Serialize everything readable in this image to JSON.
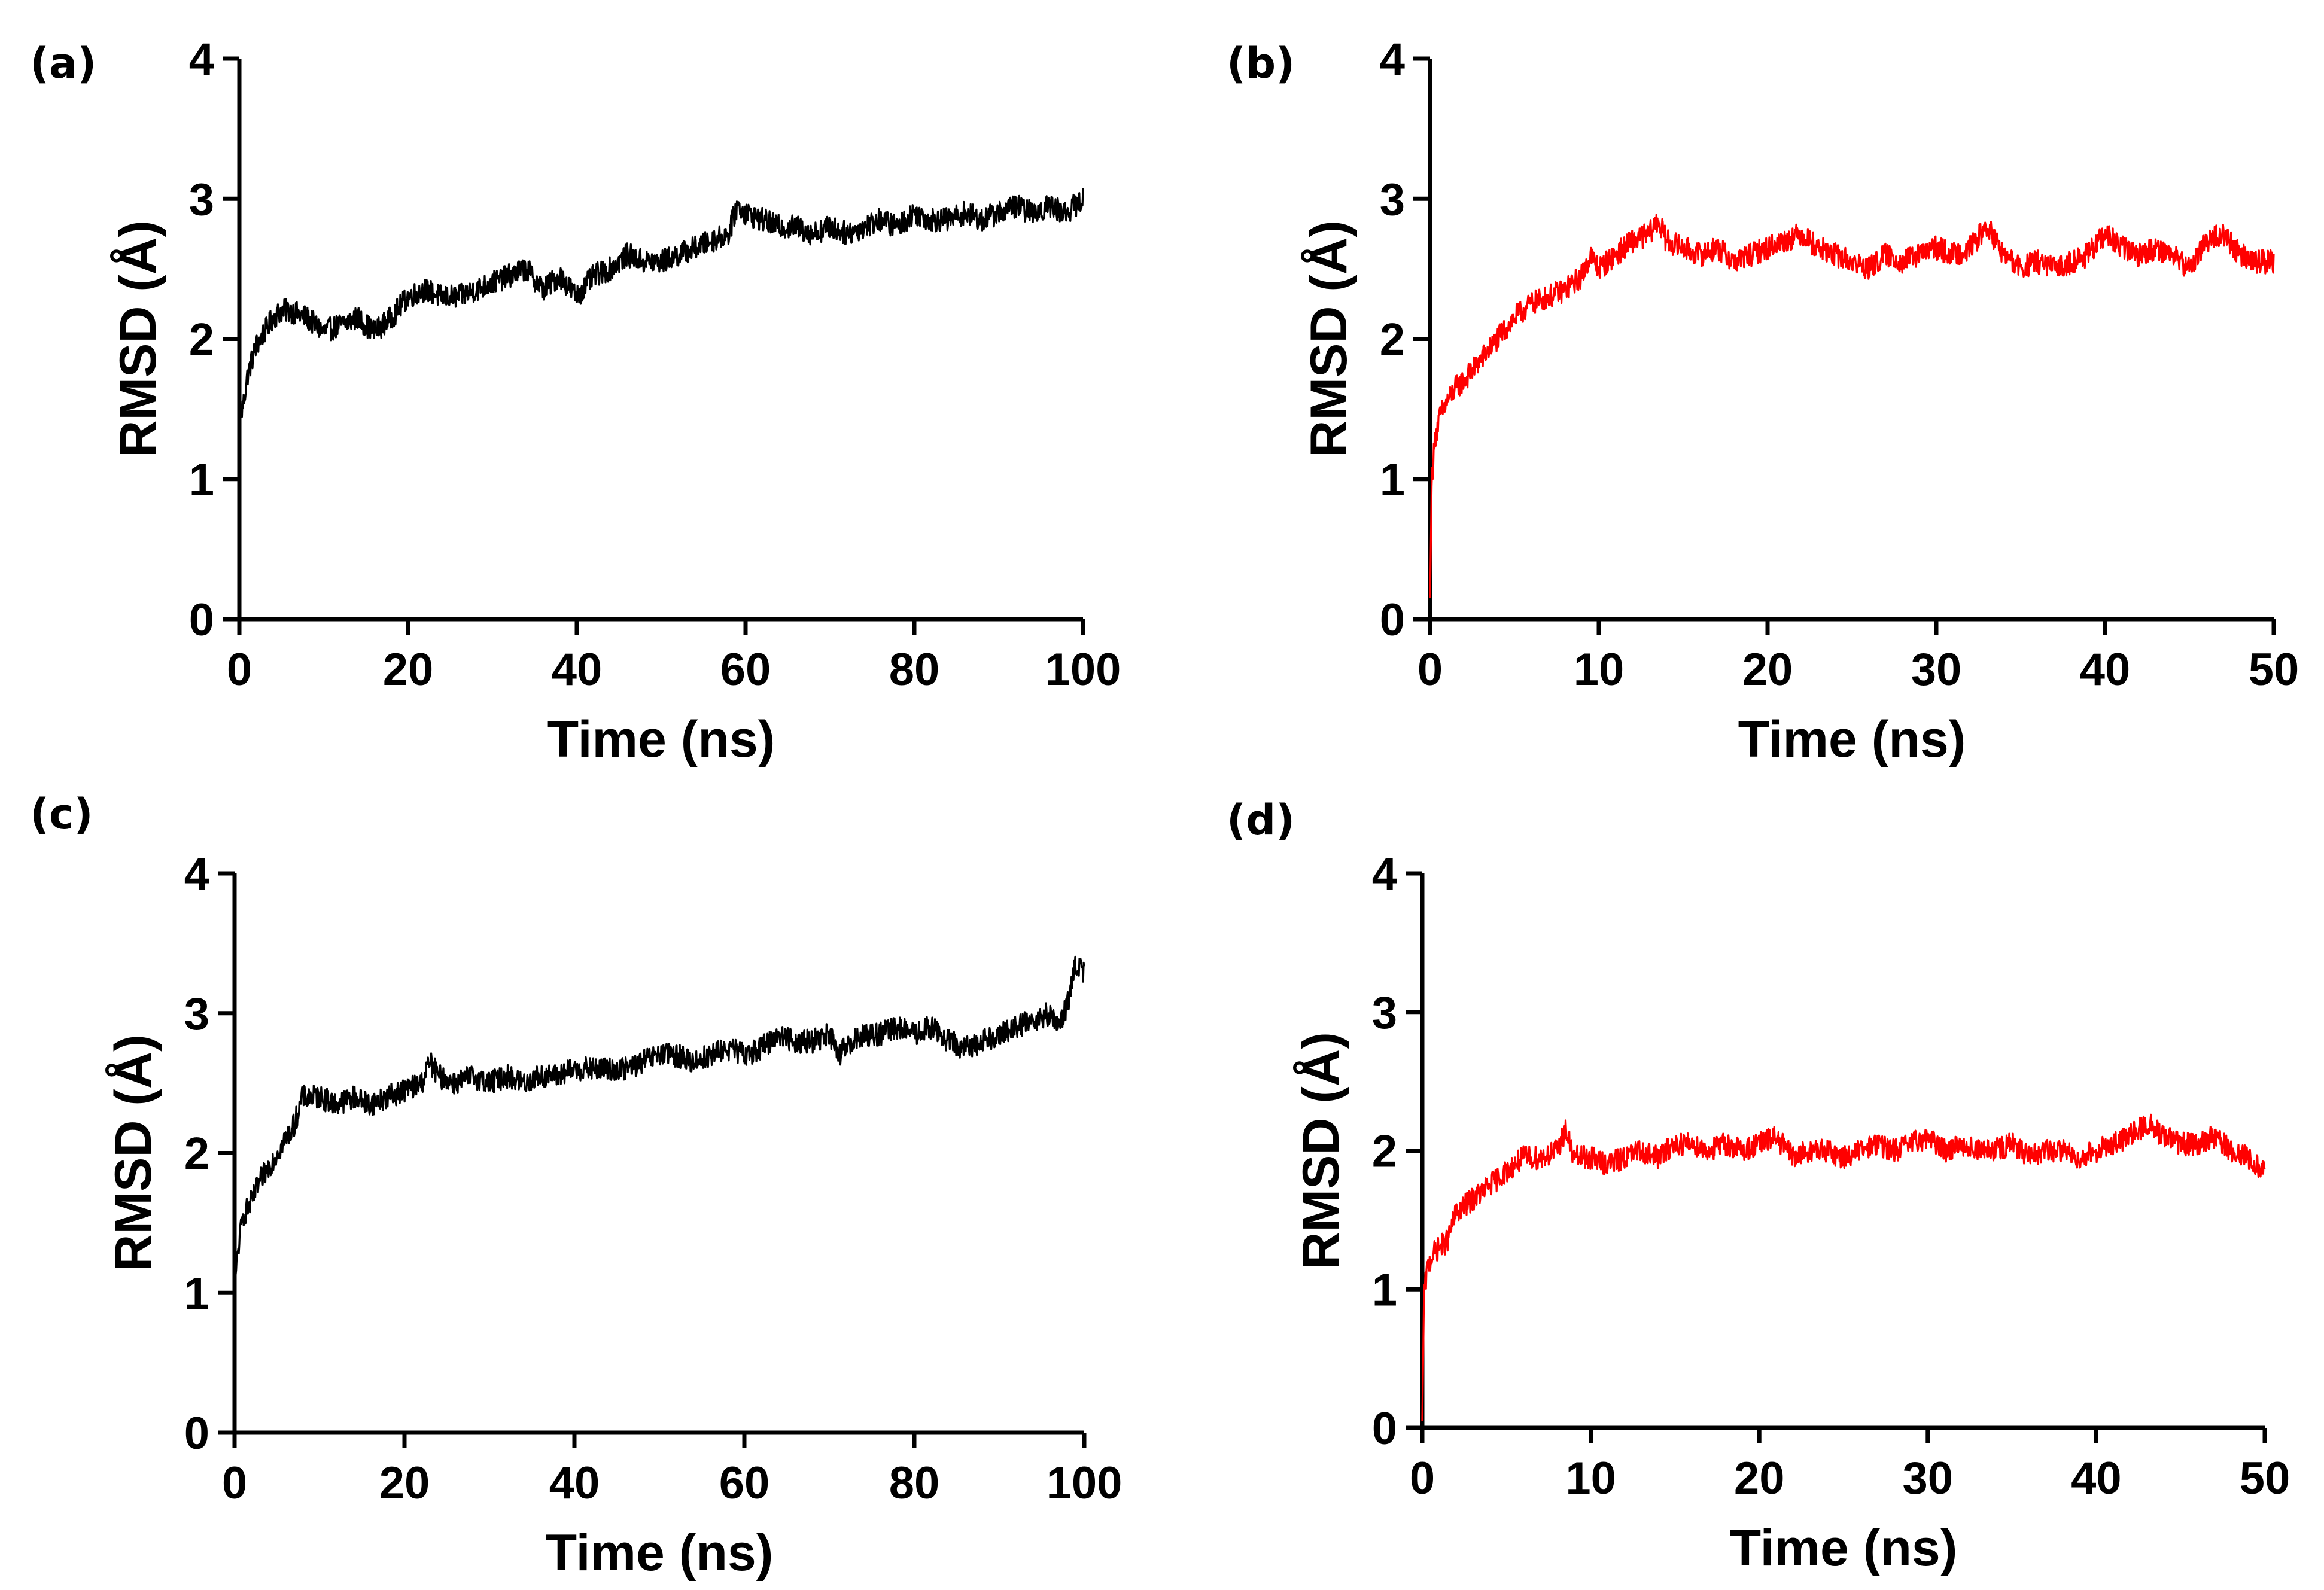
{
  "chart_data": [
    {
      "type": "line",
      "panel_label": "(a)",
      "xlabel": "Time (ns)",
      "ylabel": "RMSD (Å)",
      "xlim": [
        0,
        100
      ],
      "ylim": [
        0,
        4
      ],
      "xticks": [
        "0",
        "20",
        "40",
        "60",
        "80",
        "100"
      ],
      "yticks": [
        "0",
        "1",
        "2",
        "3",
        "4"
      ],
      "color": "#000000",
      "series": [
        {
          "name": "RMSD",
          "x": [
            0,
            0.5,
            1,
            2,
            3,
            4,
            5,
            6,
            8,
            10,
            12,
            14,
            16,
            18,
            20,
            22,
            24,
            26,
            28,
            30,
            32,
            34,
            36,
            38,
            40,
            42,
            44,
            46,
            48,
            50,
            52,
            54,
            56,
            58,
            59,
            60,
            62,
            64,
            66,
            68,
            70,
            72,
            74,
            76,
            78,
            80,
            82,
            84,
            86,
            88,
            90,
            92,
            94,
            96,
            98,
            100
          ],
          "y": [
            1.4,
            1.55,
            1.75,
            1.95,
            2.05,
            2.15,
            2.2,
            2.2,
            2.15,
            2.05,
            2.1,
            2.15,
            2.05,
            2.15,
            2.3,
            2.35,
            2.3,
            2.3,
            2.35,
            2.4,
            2.45,
            2.5,
            2.35,
            2.45,
            2.3,
            2.45,
            2.5,
            2.6,
            2.55,
            2.55,
            2.6,
            2.65,
            2.7,
            2.75,
            2.95,
            2.9,
            2.85,
            2.8,
            2.8,
            2.75,
            2.8,
            2.75,
            2.8,
            2.85,
            2.8,
            2.9,
            2.85,
            2.85,
            2.9,
            2.85,
            2.9,
            2.95,
            2.9,
            2.95,
            2.9,
            3.0
          ]
        }
      ]
    },
    {
      "type": "line",
      "panel_label": "(b)",
      "xlabel": "Time (ns)",
      "ylabel": "RMSD (Å)",
      "xlim": [
        0,
        50
      ],
      "ylim": [
        0,
        4
      ],
      "xticks": [
        "0",
        "10",
        "20",
        "30",
        "40",
        "50"
      ],
      "yticks": [
        "0",
        "1",
        "2",
        "3",
        "4"
      ],
      "color": "#ff0000",
      "series": [
        {
          "name": "RMSD",
          "x": [
            0,
            0.1,
            0.3,
            0.6,
            1,
            1.5,
            2,
            3,
            4,
            5,
            6,
            7,
            8,
            9,
            9.5,
            10,
            11,
            12,
            13,
            13.5,
            14,
            15,
            16,
            17,
            18,
            19,
            20,
            21,
            22,
            23,
            24,
            25,
            26,
            27,
            28,
            29,
            30,
            31,
            32,
            33,
            34,
            35,
            36,
            37,
            38,
            39,
            40,
            41,
            42,
            43,
            44,
            45,
            46,
            47,
            48,
            49,
            50
          ],
          "y": [
            0.15,
            1.0,
            1.3,
            1.45,
            1.55,
            1.65,
            1.7,
            1.85,
            2.0,
            2.15,
            2.25,
            2.3,
            2.35,
            2.45,
            2.6,
            2.5,
            2.6,
            2.7,
            2.75,
            2.85,
            2.7,
            2.65,
            2.6,
            2.65,
            2.55,
            2.6,
            2.65,
            2.7,
            2.75,
            2.65,
            2.6,
            2.55,
            2.5,
            2.6,
            2.55,
            2.6,
            2.65,
            2.6,
            2.65,
            2.8,
            2.6,
            2.5,
            2.55,
            2.5,
            2.55,
            2.6,
            2.75,
            2.65,
            2.6,
            2.65,
            2.6,
            2.5,
            2.7,
            2.75,
            2.6,
            2.55,
            2.55
          ]
        }
      ]
    },
    {
      "type": "line",
      "panel_label": "(c)",
      "xlabel": "Time (ns)",
      "ylabel": "RMSD (Å)",
      "xlim": [
        0,
        100
      ],
      "ylim": [
        0,
        4
      ],
      "xticks": [
        "0",
        "20",
        "40",
        "60",
        "80",
        "100"
      ],
      "yticks": [
        "0",
        "1",
        "2",
        "3",
        "4"
      ],
      "color": "#000000",
      "series": [
        {
          "name": "RMSD",
          "x": [
            0,
            0.5,
            1,
            2,
            3,
            4,
            5,
            6,
            7,
            8,
            10,
            12,
            14,
            16,
            18,
            20,
            22,
            23,
            24,
            26,
            28,
            30,
            32,
            34,
            36,
            38,
            40,
            42,
            44,
            46,
            48,
            50,
            52,
            54,
            56,
            58,
            60,
            62,
            64,
            66,
            68,
            70,
            71,
            72,
            74,
            76,
            78,
            80,
            82,
            84,
            86,
            88,
            90,
            92,
            94,
            96,
            97,
            98,
            99,
            100
          ],
          "y": [
            1.05,
            1.35,
            1.55,
            1.65,
            1.8,
            1.9,
            2.0,
            2.1,
            2.2,
            2.4,
            2.4,
            2.35,
            2.4,
            2.35,
            2.4,
            2.45,
            2.5,
            2.65,
            2.55,
            2.5,
            2.55,
            2.5,
            2.55,
            2.5,
            2.55,
            2.55,
            2.6,
            2.6,
            2.6,
            2.6,
            2.65,
            2.7,
            2.7,
            2.65,
            2.7,
            2.75,
            2.7,
            2.75,
            2.85,
            2.8,
            2.8,
            2.85,
            2.7,
            2.75,
            2.85,
            2.85,
            2.9,
            2.85,
            2.9,
            2.8,
            2.75,
            2.8,
            2.85,
            2.9,
            2.95,
            3.0,
            2.9,
            3.05,
            3.35,
            3.3
          ]
        }
      ]
    },
    {
      "type": "line",
      "panel_label": "(d)",
      "xlabel": "Time (ns)",
      "ylabel": "RMSD (Å)",
      "xlim": [
        0,
        50
      ],
      "ylim": [
        0,
        4
      ],
      "xticks": [
        "0",
        "10",
        "20",
        "30",
        "40",
        "50"
      ],
      "yticks": [
        "0",
        "1",
        "2",
        "3",
        "4"
      ],
      "color": "#ff0000",
      "series": [
        {
          "name": "RMSD",
          "x": [
            0,
            0.1,
            0.3,
            0.6,
            1,
            1.5,
            2,
            3,
            4,
            5,
            6,
            7,
            8,
            8.5,
            9,
            10,
            11,
            12,
            13,
            14,
            15,
            16,
            17,
            18,
            19,
            20,
            21,
            22,
            23,
            24,
            25,
            26,
            27,
            28,
            29,
            30,
            31,
            32,
            33,
            34,
            35,
            36,
            37,
            38,
            39,
            40,
            41,
            42,
            43,
            44,
            45,
            46,
            47,
            48,
            49,
            50
          ],
          "y": [
            0.05,
            0.95,
            1.15,
            1.25,
            1.3,
            1.35,
            1.55,
            1.65,
            1.75,
            1.85,
            1.95,
            1.95,
            2.0,
            2.15,
            1.95,
            1.95,
            1.9,
            1.95,
            2.0,
            1.95,
            2.05,
            2.05,
            2.0,
            2.05,
            2.0,
            2.05,
            2.1,
            1.95,
            2.0,
            2.0,
            1.95,
            2.0,
            2.05,
            2.0,
            2.05,
            2.1,
            2.0,
            2.05,
            2.0,
            2.0,
            2.05,
            1.95,
            2.0,
            2.0,
            1.95,
            2.0,
            2.05,
            2.1,
            2.2,
            2.1,
            2.05,
            2.05,
            2.1,
            2.0,
            1.95,
            1.85
          ]
        }
      ]
    }
  ]
}
